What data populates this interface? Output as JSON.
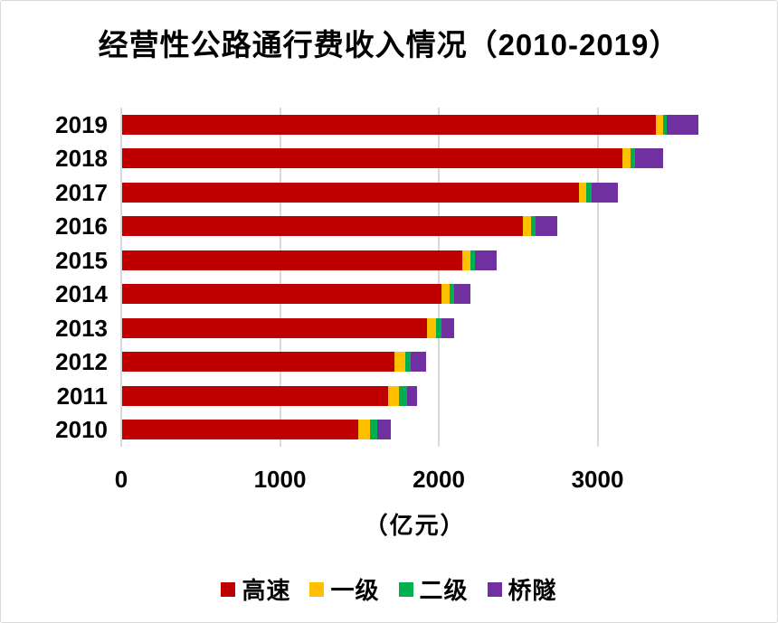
{
  "chart_data": {
    "type": "bar",
    "orientation": "horizontal",
    "stacked": true,
    "title": "经营性公路通行费收入情况（2010-2019）",
    "xlabel": "（亿元）",
    "categories": [
      "2019",
      "2018",
      "2017",
      "2016",
      "2015",
      "2014",
      "2013",
      "2012",
      "2011",
      "2010"
    ],
    "series": [
      {
        "key": "expressway",
        "name": "高速",
        "color": "#c00000",
        "values": [
          3360,
          3150,
          2875,
          2525,
          2145,
          2010,
          1920,
          1715,
          1675,
          1490
        ]
      },
      {
        "key": "class1-road",
        "name": "一级",
        "color": "#ffc000",
        "values": [
          45,
          50,
          50,
          50,
          50,
          55,
          60,
          70,
          70,
          70
        ]
      },
      {
        "key": "class2-road",
        "name": "二级",
        "color": "#00b050",
        "values": [
          25,
          30,
          30,
          30,
          30,
          25,
          30,
          35,
          50,
          45
        ]
      },
      {
        "key": "bridge-tunnel",
        "name": "桥隧",
        "color": "#7030a0",
        "values": [
          200,
          180,
          170,
          135,
          135,
          105,
          80,
          95,
          65,
          85
        ]
      }
    ],
    "x_ticks": [
      0,
      1000,
      2000,
      3000
    ],
    "xlim": [
      0,
      3700
    ],
    "grid": true,
    "gridline_color": "#d9d9d9",
    "legend_position": "bottom",
    "legend": [
      "高速",
      "一级",
      "二级",
      "桥隧"
    ]
  }
}
